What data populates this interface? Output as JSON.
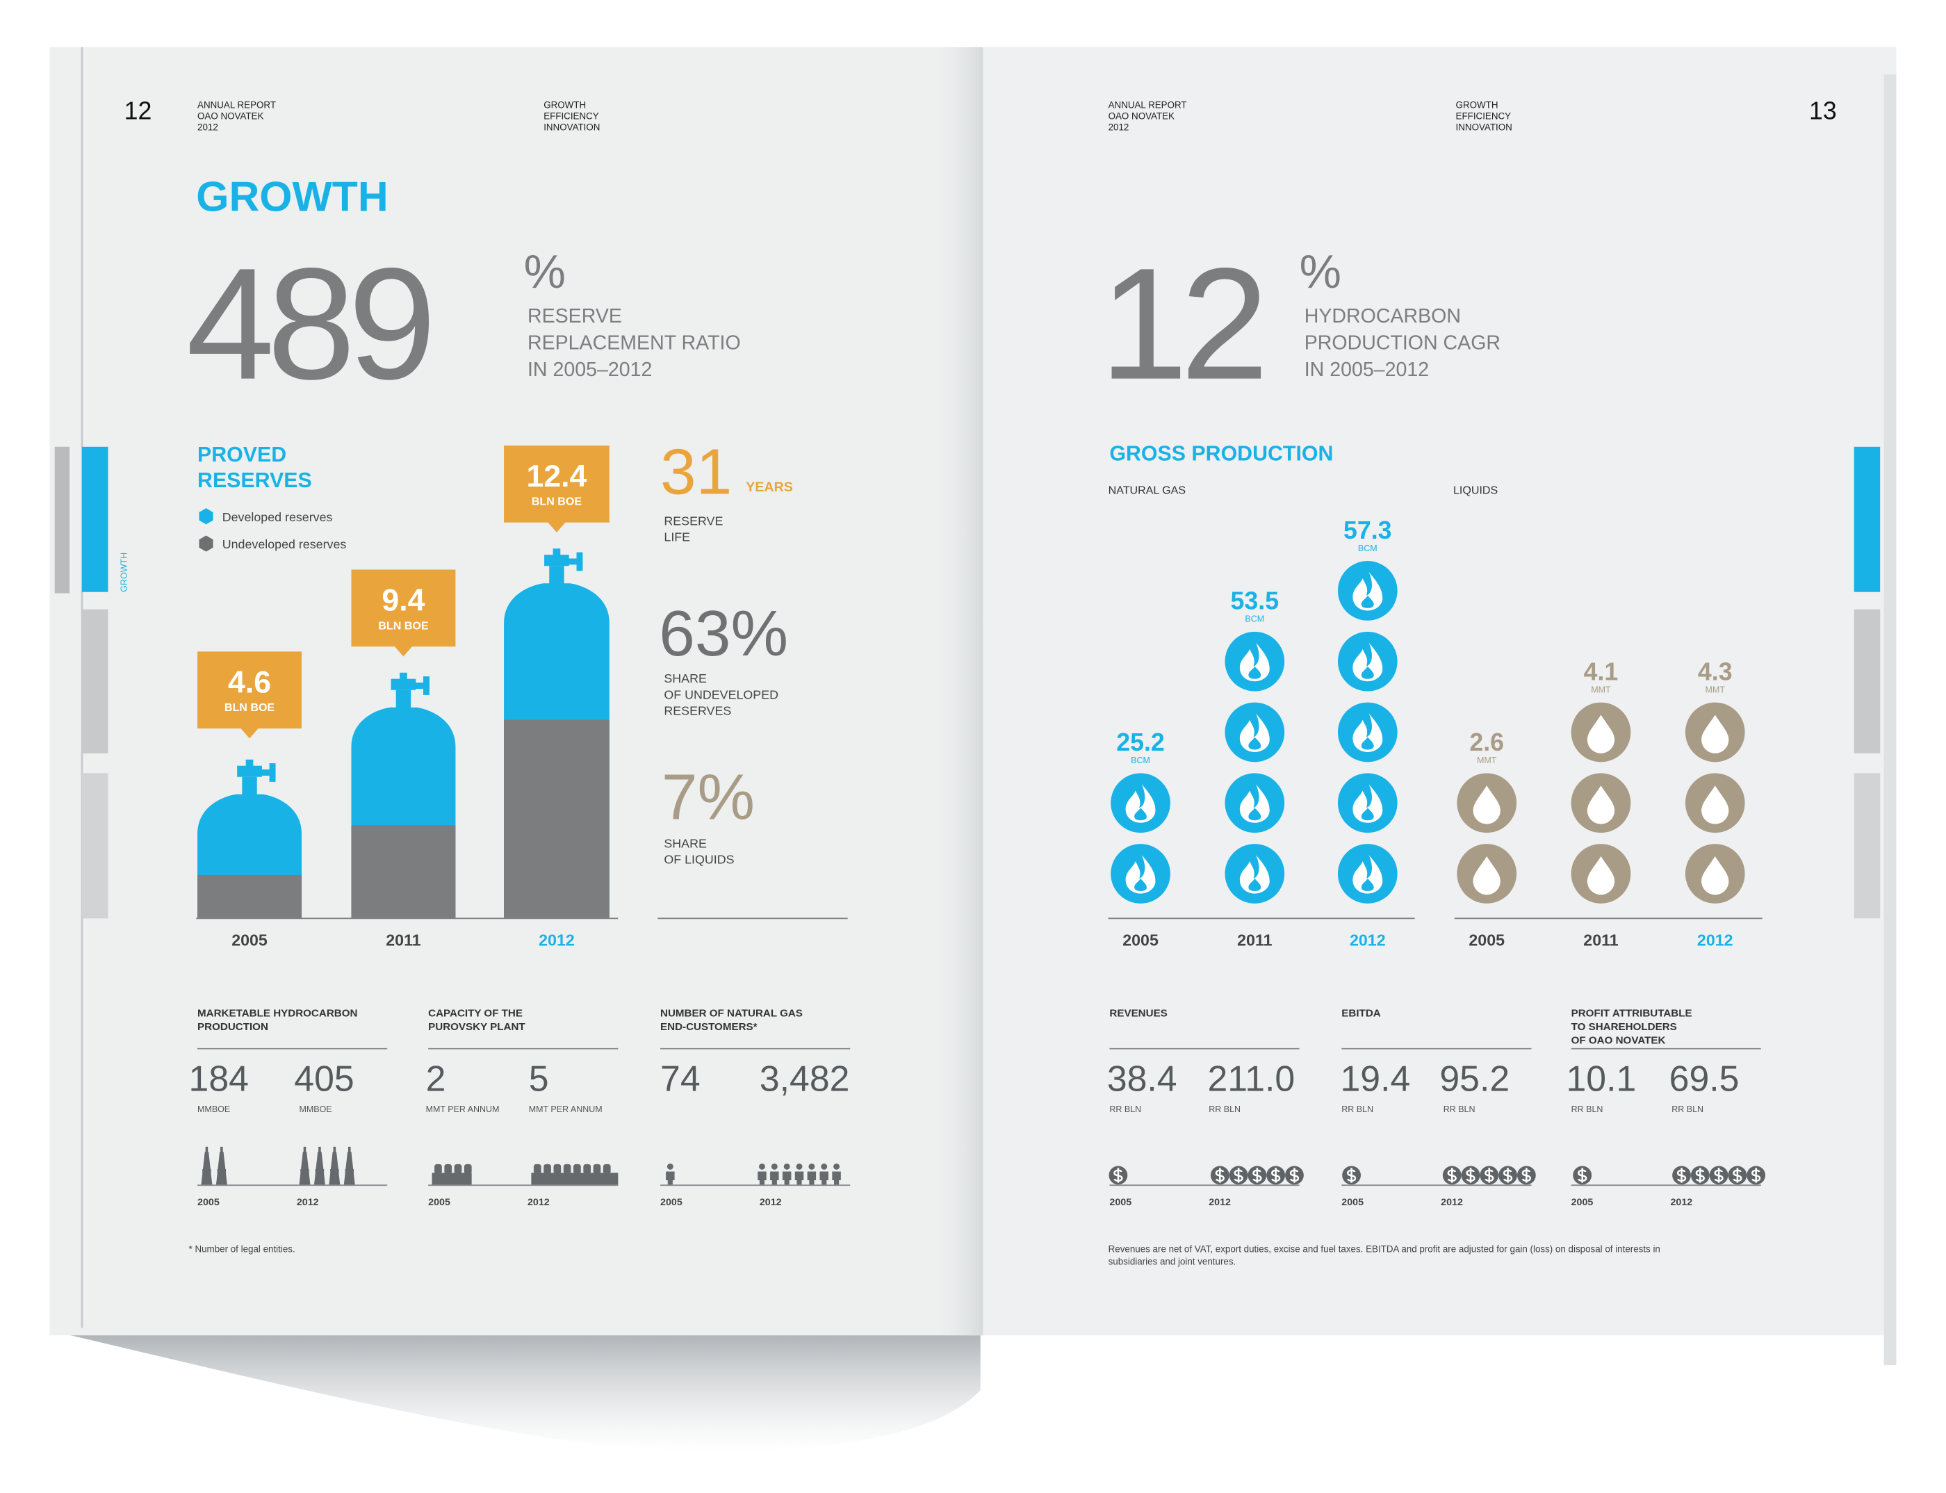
{
  "left_page": {
    "page_number": "12",
    "report": [
      "ANNUAL REPORT",
      "OAO NOVATEK",
      "2012"
    ],
    "motto": [
      "GROWTH",
      "EFFICIENCY",
      "INNOVATION"
    ],
    "side_tab": "GROWTH",
    "section_title": "GROWTH",
    "headline": {
      "value": "489",
      "unit": "%",
      "description": [
        "RESERVE",
        "REPLACEMENT RATIO",
        "IN 2005–2012"
      ]
    },
    "proved_reserves": {
      "title": [
        "PROVED",
        "RESERVES"
      ],
      "legend": [
        "Developed reserves",
        "Undeveloped reserves"
      ],
      "bars": [
        {
          "year": "2005",
          "value": "4.6",
          "unit": "BLN BOE"
        },
        {
          "year": "2011",
          "value": "9.4",
          "unit": "BLN BOE"
        },
        {
          "year": "2012",
          "value": "12.4",
          "unit": "BLN BOE"
        }
      ]
    },
    "stats": [
      {
        "value": "31",
        "unit": "YEARS",
        "label": [
          "RESERVE",
          "LIFE"
        ]
      },
      {
        "value": "63%",
        "label": [
          "SHARE",
          "OF UNDEVELOPED",
          "RESERVES"
        ]
      },
      {
        "value": "7%",
        "label": [
          "SHARE",
          "OF LIQUIDS"
        ]
      }
    ],
    "metrics": [
      {
        "title": [
          "MARKETABLE HYDROCARBON",
          "PRODUCTION"
        ],
        "values": [
          "184",
          "405"
        ],
        "units": [
          "MMBOE",
          "MMBOE"
        ],
        "years": [
          "2005",
          "2012"
        ]
      },
      {
        "title": [
          "CAPACITY OF THE",
          "PUROVSKY PLANT"
        ],
        "values": [
          "2",
          "5"
        ],
        "units": [
          "MMT PER ANNUM",
          "MMT PER ANNUM"
        ],
        "years": [
          "2005",
          "2012"
        ]
      },
      {
        "title": [
          "NUMBER OF NATURAL GAS",
          "END-CUSTOMERS*"
        ],
        "values": [
          "74",
          "3,482"
        ],
        "years": [
          "2005",
          "2012"
        ]
      }
    ],
    "footnote": "* Number of legal entities."
  },
  "right_page": {
    "page_number": "13",
    "report": [
      "ANNUAL REPORT",
      "OAO NOVATEK",
      "2012"
    ],
    "motto": [
      "GROWTH",
      "EFFICIENCY",
      "INNOVATION"
    ],
    "headline": {
      "value": "12",
      "unit": "%",
      "description": [
        "HYDROCARBON",
        "PRODUCTION CAGR",
        "IN 2005–2012"
      ]
    },
    "gross_production": {
      "title": "GROSS PRODUCTION",
      "groups": [
        {
          "label": "NATURAL GAS",
          "bars": [
            {
              "year": "2005",
              "value": "25.2",
              "unit": "BCM"
            },
            {
              "year": "2011",
              "value": "53.5",
              "unit": "BCM"
            },
            {
              "year": "2012",
              "value": "57.3",
              "unit": "BCM"
            }
          ]
        },
        {
          "label": "LIQUIDS",
          "bars": [
            {
              "year": "2005",
              "value": "2.6",
              "unit": "MMT"
            },
            {
              "year": "2011",
              "value": "4.1",
              "unit": "MMT"
            },
            {
              "year": "2012",
              "value": "4.3",
              "unit": "MMT"
            }
          ]
        }
      ]
    },
    "metrics": [
      {
        "title": [
          "REVENUES"
        ],
        "values": [
          "38.4",
          "211.0"
        ],
        "units": [
          "RR BLN",
          "RR BLN"
        ],
        "years": [
          "2005",
          "2012"
        ]
      },
      {
        "title": [
          "EBITDA"
        ],
        "values": [
          "19.4",
          "95.2"
        ],
        "units": [
          "RR BLN",
          "RR BLN"
        ],
        "years": [
          "2005",
          "2012"
        ]
      },
      {
        "title": [
          "PROFIT ATTRIBUTABLE",
          "TO SHAREHOLDERS",
          "OF OAO NOVATEK"
        ],
        "values": [
          "10.1",
          "69.5"
        ],
        "units": [
          "RR BLN",
          "RR BLN"
        ],
        "years": [
          "2005",
          "2012"
        ]
      }
    ],
    "footnote": [
      "Revenues are net of VAT, export duties, excise and fuel taxes. EBITDA and profit are adjusted for gain (loss) on disposal of interests in",
      "subsidiaries and joint ventures."
    ]
  }
}
